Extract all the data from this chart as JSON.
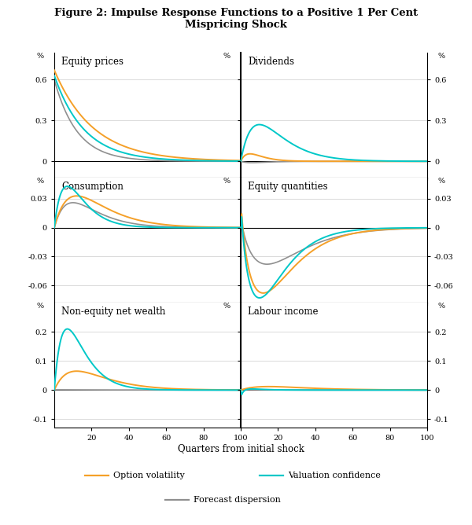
{
  "title_line1": "Figure 2: Impulse Response Functions to a Positive 1 Per Cent",
  "title_line2": "Mispricing Shock",
  "xlabel": "Quarters from initial shock",
  "panels": [
    {
      "title": "Equity prices",
      "row": 0,
      "col": 0,
      "ylim": [
        -0.12,
        0.8
      ],
      "yticks": [
        0.0,
        0.3,
        0.6
      ]
    },
    {
      "title": "Dividends",
      "row": 0,
      "col": 1,
      "ylim": [
        -0.12,
        0.8
      ],
      "yticks": [
        0.0,
        0.3,
        0.6
      ]
    },
    {
      "title": "Consumption",
      "row": 1,
      "col": 0,
      "ylim": [
        -0.078,
        0.052
      ],
      "yticks": [
        -0.06,
        -0.03,
        0.0,
        0.03
      ]
    },
    {
      "title": "Equity quantities",
      "row": 1,
      "col": 1,
      "ylim": [
        -0.078,
        0.052
      ],
      "yticks": [
        -0.06,
        -0.03,
        0.0,
        0.03
      ]
    },
    {
      "title": "Non-equity net wealth",
      "row": 2,
      "col": 0,
      "ylim": [
        -0.13,
        0.3
      ],
      "yticks": [
        -0.1,
        0.0,
        0.1,
        0.2
      ]
    },
    {
      "title": "Labour income",
      "row": 2,
      "col": 1,
      "ylim": [
        -0.13,
        0.3
      ],
      "yticks": [
        -0.1,
        0.0,
        0.1,
        0.2
      ]
    }
  ],
  "colors": {
    "option_volatility": "#F5A028",
    "valuation_confidence": "#00C8C8",
    "forecast_dispersion": "#909090"
  },
  "xlim": [
    0,
    100
  ],
  "xticks": [
    20,
    40,
    60,
    80,
    100
  ],
  "n_quarters": 201
}
